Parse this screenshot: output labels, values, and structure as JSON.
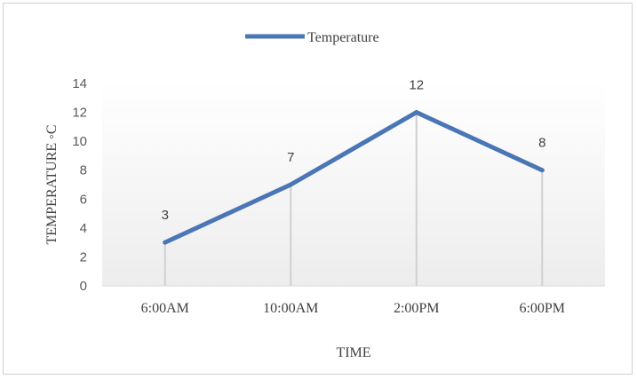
{
  "chart_data": {
    "type": "line",
    "categories": [
      "6:00AM",
      "10:00AM",
      "2:00PM",
      "6:00PM"
    ],
    "series": [
      {
        "name": "Temperature",
        "values": [
          3,
          7,
          12,
          8
        ]
      }
    ],
    "data_labels": [
      "3",
      "7",
      "12",
      "8"
    ],
    "y_ticks": [
      "0",
      "2",
      "4",
      "6",
      "8",
      "10",
      "12",
      "14"
    ],
    "xlabel": "TIME",
    "ylabel": "TEMPERATURE ◦C",
    "ylim": [
      0,
      14
    ],
    "grid": false,
    "drop_lines": true,
    "legend_position": "top",
    "colors": {
      "series": "#4a76b6",
      "drop_line": "#d0d0d0",
      "plot_gradient_top": "#ffffff",
      "plot_gradient_bottom": "#ededed"
    }
  }
}
